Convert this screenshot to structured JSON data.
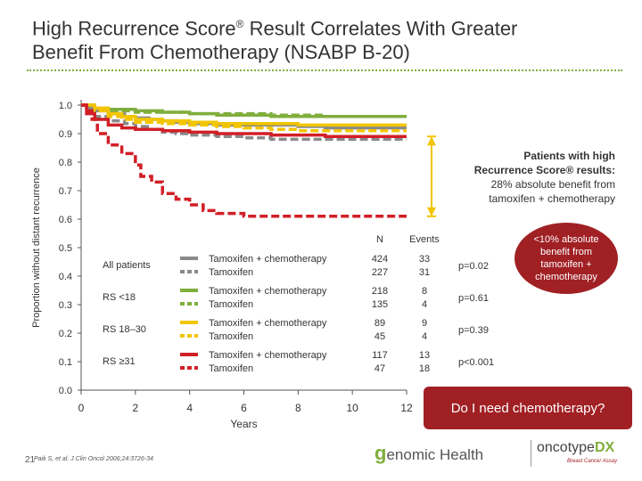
{
  "slide": {
    "title_line1": "High Recurrence Score",
    "title_reg": "®",
    "title_line1_rest": " Result Correlates With Greater",
    "title_line2": "Benefit From Chemotherapy (NSABP B-20)",
    "page_number": "21",
    "citation": "Paik S, et al. J Clin Oncol 2006;24:3726-34",
    "callout_bold_line1": "Patients with high",
    "callout_bold_line2": "Recurrence Score® results:",
    "callout_line3": "28% absolute benefit from",
    "callout_line4": "tamoxifen + chemotherapy",
    "callout2": "<10% absolute benefit from tamoxifen + chemotherapy",
    "question": "Do I need chemotherapy?",
    "logo_genomic": "enomic Health",
    "logo_genomic_g": "g",
    "logo_onco": "oncotype",
    "logo_dx": "DX",
    "logo_tagline": "Breast Cancer Assay",
    "colors": {
      "green": "#7fae3c",
      "gray": "#8a8a8a",
      "yellow": "#f2c500",
      "red": "#d11f26",
      "callout_red": "#a02024"
    }
  },
  "chart_data": {
    "type": "line",
    "ylabel": "Proportion without distant recurrence",
    "xlabel": "Years",
    "xlim": [
      0,
      12
    ],
    "ylim": [
      0,
      1
    ],
    "x_ticks": [
      "0",
      "2",
      "4",
      "6",
      "8",
      "10",
      "12"
    ],
    "y_ticks": [
      "0.0",
      "0.1",
      "0.2",
      "0.3",
      "0.4",
      "0.5",
      "0.6",
      "0.7",
      "0.8",
      "0.9",
      "1.0"
    ],
    "table_headers": {
      "n": "N",
      "events": "Events"
    },
    "groups": [
      {
        "label": "All patients",
        "p": "p=0.02",
        "arms": [
          {
            "arm": "Tamoxifen + chemotherapy",
            "n": "424",
            "events": "33"
          },
          {
            "arm": "Tamoxifen",
            "n": "227",
            "events": "31"
          }
        ]
      },
      {
        "label": "RS <18",
        "p": "p=0.61",
        "arms": [
          {
            "arm": "Tamoxifen + chemotherapy",
            "n": "218",
            "events": "8"
          },
          {
            "arm": "Tamoxifen",
            "n": "135",
            "events": "4"
          }
        ]
      },
      {
        "label": "RS 18–30",
        "p": "p=0.39",
        "arms": [
          {
            "arm": "Tamoxifen + chemotherapy",
            "n": "89",
            "events": "9"
          },
          {
            "arm": "Tamoxifen",
            "n": "45",
            "events": "4"
          }
        ]
      },
      {
        "label": "RS ≥31",
        "p": "p<0.001",
        "arms": [
          {
            "arm": "Tamoxifen + chemotherapy",
            "n": "117",
            "events": "13"
          },
          {
            "arm": "Tamoxifen",
            "n": "47",
            "events": "18"
          }
        ]
      }
    ],
    "series": [
      {
        "color": "#8a8a8a",
        "dash": false,
        "x": [
          0,
          0.2,
          0.5,
          1,
          1.6,
          2,
          2.5,
          3,
          3.5,
          4,
          5,
          6,
          7,
          8,
          9,
          10,
          11,
          12
        ],
        "y": [
          1,
          0.99,
          0.98,
          0.97,
          0.96,
          0.955,
          0.95,
          0.945,
          0.94,
          0.935,
          0.93,
          0.93,
          0.93,
          0.925,
          0.92,
          0.92,
          0.92,
          0.92
        ]
      },
      {
        "color": "#8a8a8a",
        "dash": true,
        "x": [
          0,
          0.2,
          0.5,
          1,
          1.6,
          2,
          2.5,
          3,
          3.5,
          4,
          5,
          6,
          7,
          8,
          9,
          10,
          11,
          12
        ],
        "y": [
          1,
          0.98,
          0.96,
          0.945,
          0.935,
          0.925,
          0.915,
          0.905,
          0.9,
          0.895,
          0.89,
          0.885,
          0.88,
          0.88,
          0.88,
          0.88,
          0.88,
          0.88
        ]
      },
      {
        "color": "#7fae3c",
        "dash": false,
        "x": [
          0,
          0.5,
          1,
          2,
          3,
          4,
          5,
          6,
          7,
          8,
          9,
          10,
          11,
          12
        ],
        "y": [
          1,
          0.99,
          0.985,
          0.98,
          0.975,
          0.97,
          0.965,
          0.965,
          0.96,
          0.96,
          0.96,
          0.96,
          0.96,
          0.96
        ]
      },
      {
        "color": "#7fae3c",
        "dash": true,
        "x": [
          0,
          0.5,
          1,
          2,
          3,
          4,
          5,
          6,
          7,
          8,
          9,
          10,
          11,
          12
        ],
        "y": [
          1,
          0.99,
          0.98,
          0.975,
          0.975,
          0.97,
          0.97,
          0.97,
          0.965,
          0.965,
          0.96,
          0.96,
          0.96,
          0.96
        ]
      },
      {
        "color": "#f2c500",
        "dash": false,
        "x": [
          0,
          0.5,
          1,
          1.5,
          2,
          3,
          4,
          5,
          6,
          7,
          8,
          9,
          10,
          11,
          12
        ],
        "y": [
          1,
          0.99,
          0.97,
          0.96,
          0.95,
          0.945,
          0.94,
          0.935,
          0.935,
          0.935,
          0.93,
          0.93,
          0.93,
          0.93,
          0.93
        ]
      },
      {
        "color": "#f2c500",
        "dash": true,
        "x": [
          0,
          0.5,
          1,
          1.5,
          2,
          3,
          4,
          5,
          6,
          7,
          8,
          9,
          10,
          11,
          12
        ],
        "y": [
          1,
          0.98,
          0.96,
          0.95,
          0.94,
          0.935,
          0.93,
          0.925,
          0.92,
          0.915,
          0.91,
          0.91,
          0.91,
          0.91,
          0.91
        ]
      },
      {
        "color": "#d11f26",
        "dash": false,
        "x": [
          0,
          0.2,
          0.5,
          1,
          1.5,
          2,
          3,
          4,
          5,
          6,
          7,
          8,
          9,
          10,
          11,
          12
        ],
        "y": [
          1,
          0.97,
          0.95,
          0.93,
          0.92,
          0.915,
          0.91,
          0.905,
          0.9,
          0.9,
          0.895,
          0.895,
          0.89,
          0.89,
          0.89,
          0.89
        ]
      },
      {
        "color": "#d11f26",
        "dash": true,
        "x": [
          0,
          0.2,
          0.4,
          0.6,
          1,
          1.5,
          2,
          2.2,
          2.6,
          3,
          3.5,
          4,
          4.5,
          5,
          6,
          7,
          8,
          9,
          10,
          11,
          12
        ],
        "y": [
          1,
          0.98,
          0.95,
          0.9,
          0.86,
          0.83,
          0.79,
          0.75,
          0.73,
          0.69,
          0.67,
          0.65,
          0.63,
          0.62,
          0.61,
          0.61,
          0.61,
          0.61,
          0.61,
          0.61,
          0.61
        ]
      }
    ]
  }
}
